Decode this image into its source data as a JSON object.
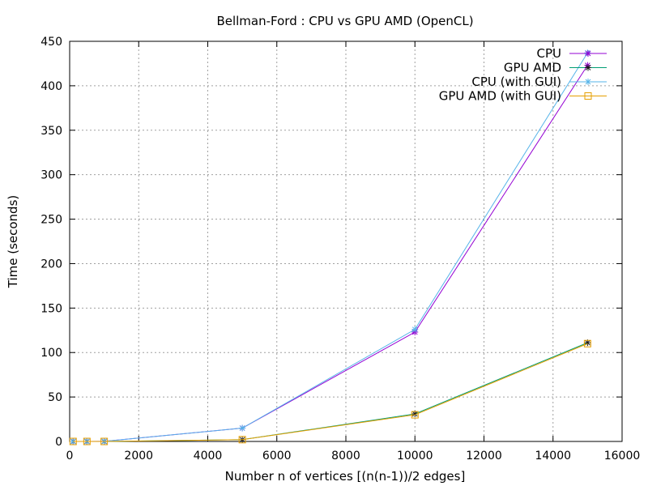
{
  "chart_data": {
    "type": "line",
    "title": "Bellman-Ford : CPU vs GPU AMD (OpenCL)",
    "xlabel": "Number n of vertices [(n(n-1))/2 edges]",
    "ylabel": "Time (seconds)",
    "xlim": [
      0,
      16000
    ],
    "ylim": [
      0,
      450
    ],
    "xticks": [
      0,
      2000,
      4000,
      6000,
      8000,
      10000,
      12000,
      14000,
      16000
    ],
    "yticks": [
      0,
      50,
      100,
      150,
      200,
      250,
      300,
      350,
      400,
      450
    ],
    "grid": true,
    "legend_position": "top-right",
    "series": [
      {
        "name": "CPU",
        "color": "#9400d3",
        "marker": "star",
        "x": [
          100,
          500,
          1000,
          5000,
          10000,
          15000
        ],
        "y": [
          0,
          0,
          0.1,
          15,
          123,
          423
        ]
      },
      {
        "name": "GPU AMD",
        "color": "#009e73",
        "marker": "star-dark",
        "x": [
          100,
          500,
          1000,
          5000,
          10000,
          15000
        ],
        "y": [
          0,
          0,
          0,
          2,
          31,
          111
        ]
      },
      {
        "name": "CPU (with GUI)",
        "color": "#56b4e9",
        "marker": "star",
        "x": [
          100,
          500,
          1000,
          5000,
          10000,
          15000
        ],
        "y": [
          0,
          0,
          0.1,
          15,
          126,
          437
        ]
      },
      {
        "name": "GPU AMD (with GUI)",
        "color": "#e69f00",
        "marker": "square",
        "x": [
          100,
          500,
          1000,
          5000,
          10000,
          15000
        ],
        "y": [
          0,
          0,
          0,
          2,
          30,
          110
        ]
      }
    ]
  }
}
